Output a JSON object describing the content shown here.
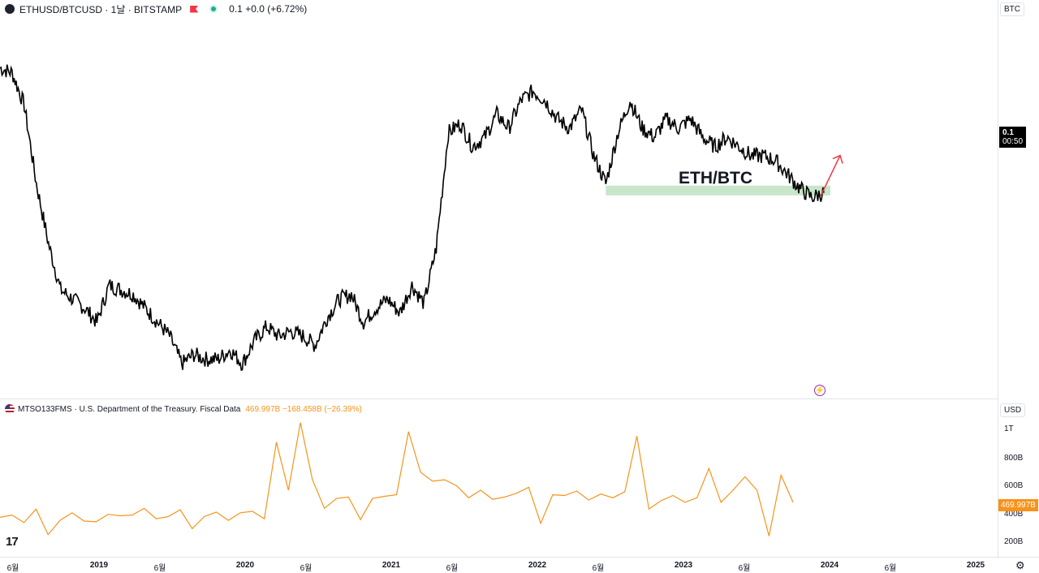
{
  "header": {
    "symbol": "ETHUSD/BTCUSD · 1날 · BITSTAMP",
    "price_readout": "0.1  +0.0 (+6.72%)"
  },
  "price_axis": {
    "unit": "BTC",
    "last_value": "0.1",
    "countdown": "00:50"
  },
  "annotation": {
    "title": "ETH/BTC"
  },
  "indicator": {
    "name": "MTSO133FMS · U.S. Department of the Treasury. Fiscal Data",
    "values": "469.997B  −168.458B (−26.39%)",
    "unit": "USD",
    "last_value": "469.997B",
    "y_ticks": [
      "1T",
      "800B",
      "600B",
      "400B",
      "200B"
    ]
  },
  "x_ticks": [
    {
      "label": "6월",
      "bold": false
    },
    {
      "label": "2019",
      "bold": true
    },
    {
      "label": "6월",
      "bold": false
    },
    {
      "label": "2020",
      "bold": true
    },
    {
      "label": "6월",
      "bold": false
    },
    {
      "label": "2021",
      "bold": true
    },
    {
      "label": "6월",
      "bold": false
    },
    {
      "label": "2022",
      "bold": true
    },
    {
      "label": "6월",
      "bold": false
    },
    {
      "label": "2023",
      "bold": true
    },
    {
      "label": "6월",
      "bold": false
    },
    {
      "label": "2024",
      "bold": true
    },
    {
      "label": "6월",
      "bold": false
    },
    {
      "label": "2025",
      "bold": true
    }
  ],
  "colors": {
    "price_line": "#000000",
    "support_zone": "#c8e6c9",
    "arrow": "#f23645",
    "indicator_line": "#f7931a"
  },
  "icons": {
    "tv_logo": "tradingview-logo-icon",
    "settings": "gear-icon",
    "alert": "lightning-icon"
  },
  "chart_data": [
    {
      "type": "line",
      "series_label": "ETHUSD/BTCUSD",
      "x_start": "2018-04-01",
      "x_end": "2023-12-01",
      "ylim": [
        0.015,
        0.09
      ],
      "x": [
        "2018-04",
        "2018-05",
        "2018-06",
        "2018-07",
        "2018-08",
        "2018-09",
        "2018-10",
        "2018-11",
        "2018-12",
        "2019-01",
        "2019-02",
        "2019-03",
        "2019-04",
        "2019-05",
        "2019-06",
        "2019-07",
        "2019-08",
        "2019-09",
        "2019-10",
        "2019-11",
        "2019-12",
        "2020-01",
        "2020-02",
        "2020-03",
        "2020-04",
        "2020-05",
        "2020-06",
        "2020-07",
        "2020-08",
        "2020-09",
        "2020-10",
        "2020-11",
        "2020-12",
        "2021-01",
        "2021-02",
        "2021-03",
        "2021-04",
        "2021-05",
        "2021-06",
        "2021-07",
        "2021-08",
        "2021-09",
        "2021-10",
        "2021-11",
        "2021-12",
        "2022-01",
        "2022-02",
        "2022-03",
        "2022-04",
        "2022-05",
        "2022-06",
        "2022-07",
        "2022-08",
        "2022-09",
        "2022-10",
        "2022-11",
        "2022-12",
        "2023-01",
        "2023-02",
        "2023-03",
        "2023-04",
        "2023-05",
        "2023-06",
        "2023-07",
        "2023-08",
        "2023-09",
        "2023-10",
        "2023-11",
        "2023-12"
      ],
      "values": [
        0.083,
        0.082,
        0.075,
        0.058,
        0.045,
        0.035,
        0.033,
        0.031,
        0.028,
        0.036,
        0.035,
        0.034,
        0.031,
        0.028,
        0.025,
        0.019,
        0.021,
        0.02,
        0.02,
        0.022,
        0.019,
        0.024,
        0.027,
        0.025,
        0.026,
        0.025,
        0.023,
        0.029,
        0.033,
        0.034,
        0.028,
        0.031,
        0.033,
        0.03,
        0.036,
        0.032,
        0.044,
        0.069,
        0.071,
        0.066,
        0.068,
        0.073,
        0.07,
        0.076,
        0.078,
        0.076,
        0.072,
        0.07,
        0.074,
        0.064,
        0.058,
        0.069,
        0.076,
        0.07,
        0.068,
        0.072,
        0.07,
        0.072,
        0.068,
        0.066,
        0.068,
        0.066,
        0.064,
        0.064,
        0.063,
        0.06,
        0.057,
        0.055,
        0.056
      ]
    },
    {
      "type": "line",
      "series_label": "MTSO133FMS",
      "ylim": [
        150,
        1100
      ],
      "y_unit": "B USD",
      "values": [
        380,
        395,
        345,
        435,
        265,
        360,
        410,
        355,
        350,
        400,
        390,
        395,
        440,
        370,
        385,
        430,
        305,
        385,
        415,
        360,
        410,
        420,
        370,
        880,
        560,
        1010,
        630,
        440,
        505,
        515,
        365,
        505,
        520,
        530,
        950,
        680,
        620,
        630,
        590,
        510,
        560,
        500,
        515,
        540,
        580,
        340,
        530,
        525,
        555,
        495,
        535,
        510,
        550,
        920,
        435,
        490,
        525,
        480,
        510,
        705,
        480,
        560,
        650,
        560,
        255,
        660,
        480
      ]
    }
  ]
}
